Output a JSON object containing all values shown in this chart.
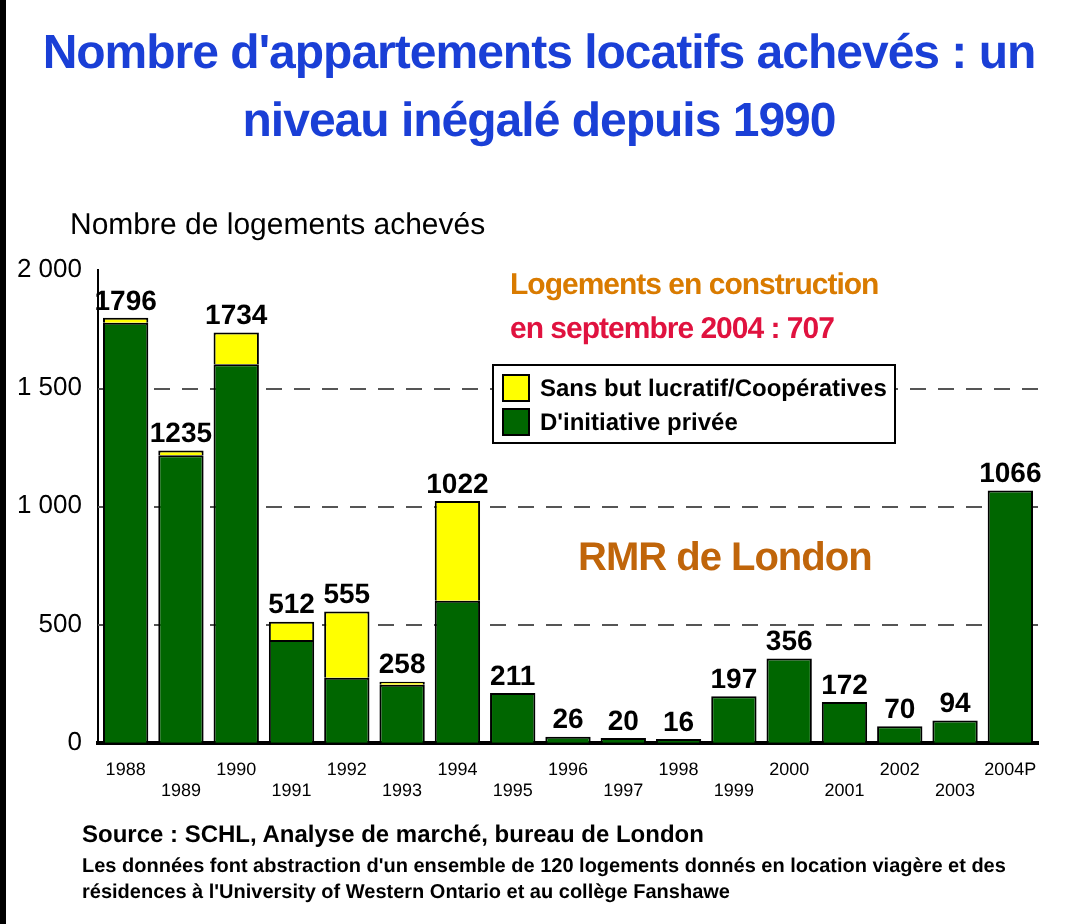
{
  "chart_data": {
    "type": "bar",
    "title": "Nombre d'appartements locatifs achevés : un niveau inégalé depuis 1990",
    "ylabel": "Nombre de logements achevés",
    "categories": [
      "1988",
      "1989",
      "1990",
      "1991",
      "1992",
      "1993",
      "1994",
      "1995",
      "1996",
      "1997",
      "1998",
      "1999",
      "2000",
      "2001",
      "2002",
      "2003",
      "2004P"
    ],
    "stacked": true,
    "series": [
      {
        "name": "D'initiative privée",
        "color": "#006600",
        "values": [
          1775,
          1215,
          1600,
          435,
          275,
          245,
          600,
          211,
          26,
          20,
          16,
          197,
          356,
          172,
          70,
          94,
          1066
        ]
      },
      {
        "name": "Sans but lucratif/Coopératives",
        "color": "#ffff00",
        "values": [
          21,
          20,
          134,
          77,
          280,
          13,
          422,
          0,
          0,
          0,
          0,
          0,
          0,
          0,
          0,
          0,
          0
        ]
      }
    ],
    "totals": [
      "1796",
      "1235",
      "1734",
      "512",
      "555",
      "258",
      "1022",
      "211",
      "26",
      "20",
      "16",
      "197",
      "356",
      "172",
      "70",
      "94",
      "1066"
    ],
    "ylim": [
      0,
      2000
    ],
    "yticks": [
      0,
      500,
      {
        "value": 1000,
        "label": "1 000"
      },
      {
        "value": 1500,
        "label": "1 500"
      },
      {
        "value": 2000,
        "label": "2 000"
      }
    ],
    "grid": "y",
    "legend": "top right",
    "annotations": [
      "Logements en construction",
      "en septembre 2004 : 707",
      "RMR de London",
      "Source : SCHL, Analyse de marché, bureau de London",
      "Les données font abstraction d'un ensemble de 120 logements donnés en location viagère et des résidences à l'University of Western Ontario et au collège Fanshawe"
    ]
  }
}
